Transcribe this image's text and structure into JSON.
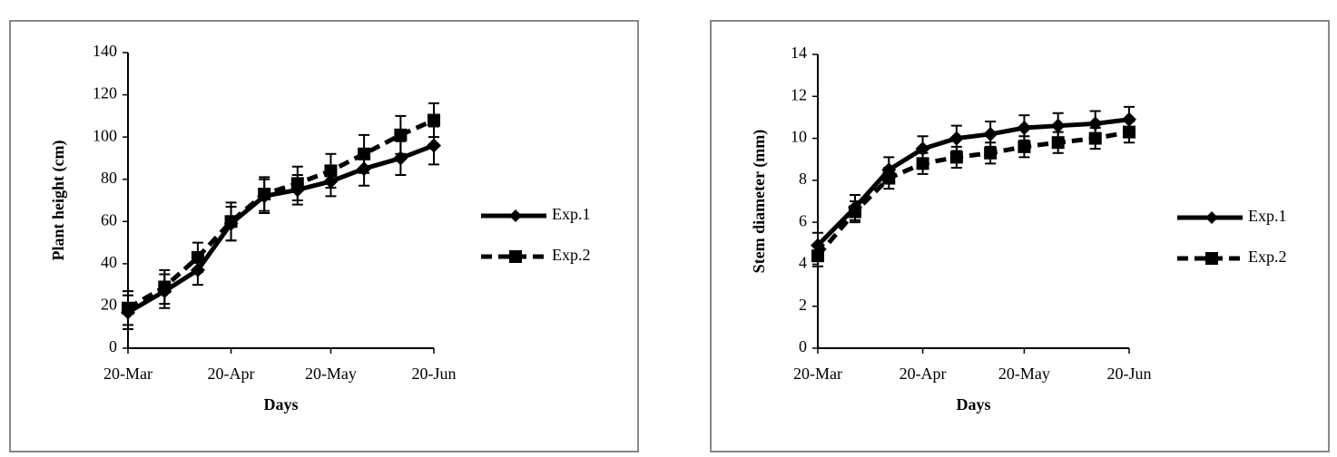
{
  "chart_data": [
    {
      "type": "line",
      "ylabel": "Plant height (cm)",
      "xlabel": "Days",
      "x": [
        "20-Mar",
        "31-Mar",
        "10-Apr",
        "20-Apr",
        "30-Apr",
        "10-May",
        "20-May",
        "30-May",
        "10-Jun",
        "20-Jun"
      ],
      "xlim": [
        "20-Mar",
        "20-Jun"
      ],
      "xticks": [
        "20-Mar",
        "20-Apr",
        "20-May",
        "20-Jun"
      ],
      "ylim": [
        0,
        140
      ],
      "yticks": [
        0,
        20,
        40,
        60,
        80,
        100,
        120,
        140
      ],
      "grid": false,
      "legend": "right",
      "series": [
        {
          "name": "Exp.1",
          "color": "#000000",
          "dash": "solid",
          "marker": "diamond",
          "values": [
            17,
            27,
            37,
            59,
            72,
            75,
            79,
            85,
            90,
            96
          ],
          "errors": [
            8,
            8,
            7,
            8,
            8,
            7,
            7,
            8,
            8,
            9
          ]
        },
        {
          "name": "Exp.2",
          "color": "#000000",
          "dash": "dashed",
          "marker": "square",
          "values": [
            19,
            29,
            43,
            60,
            73,
            78,
            84,
            92,
            101,
            108
          ],
          "errors": [
            8,
            8,
            7,
            9,
            8,
            8,
            8,
            9,
            9,
            8
          ]
        }
      ]
    },
    {
      "type": "line",
      "ylabel": "Stem diameter (mm)",
      "xlabel": "Days",
      "x": [
        "20-Mar",
        "31-Mar",
        "10-Apr",
        "20-Apr",
        "30-Apr",
        "10-May",
        "20-May",
        "30-May",
        "10-Jun",
        "20-Jun"
      ],
      "xlim": [
        "20-Mar",
        "20-Jun"
      ],
      "xticks": [
        "20-Mar",
        "20-Apr",
        "20-May",
        "20-Jun"
      ],
      "ylim": [
        0,
        14
      ],
      "yticks": [
        0,
        2,
        4,
        6,
        8,
        10,
        12,
        14
      ],
      "grid": false,
      "legend": "right",
      "series": [
        {
          "name": "Exp.1",
          "color": "#000000",
          "dash": "solid",
          "marker": "diamond",
          "values": [
            4.9,
            6.7,
            8.5,
            9.5,
            10.0,
            10.2,
            10.5,
            10.6,
            10.7,
            10.9
          ],
          "errors": [
            0.6,
            0.6,
            0.6,
            0.6,
            0.6,
            0.6,
            0.6,
            0.6,
            0.6,
            0.6
          ]
        },
        {
          "name": "Exp.2",
          "color": "#000000",
          "dash": "dashed",
          "marker": "square",
          "values": [
            4.4,
            6.5,
            8.1,
            8.8,
            9.1,
            9.3,
            9.6,
            9.8,
            10.0,
            10.3
          ],
          "errors": [
            0.5,
            0.5,
            0.5,
            0.5,
            0.5,
            0.5,
            0.5,
            0.5,
            0.5,
            0.5
          ]
        }
      ]
    }
  ]
}
